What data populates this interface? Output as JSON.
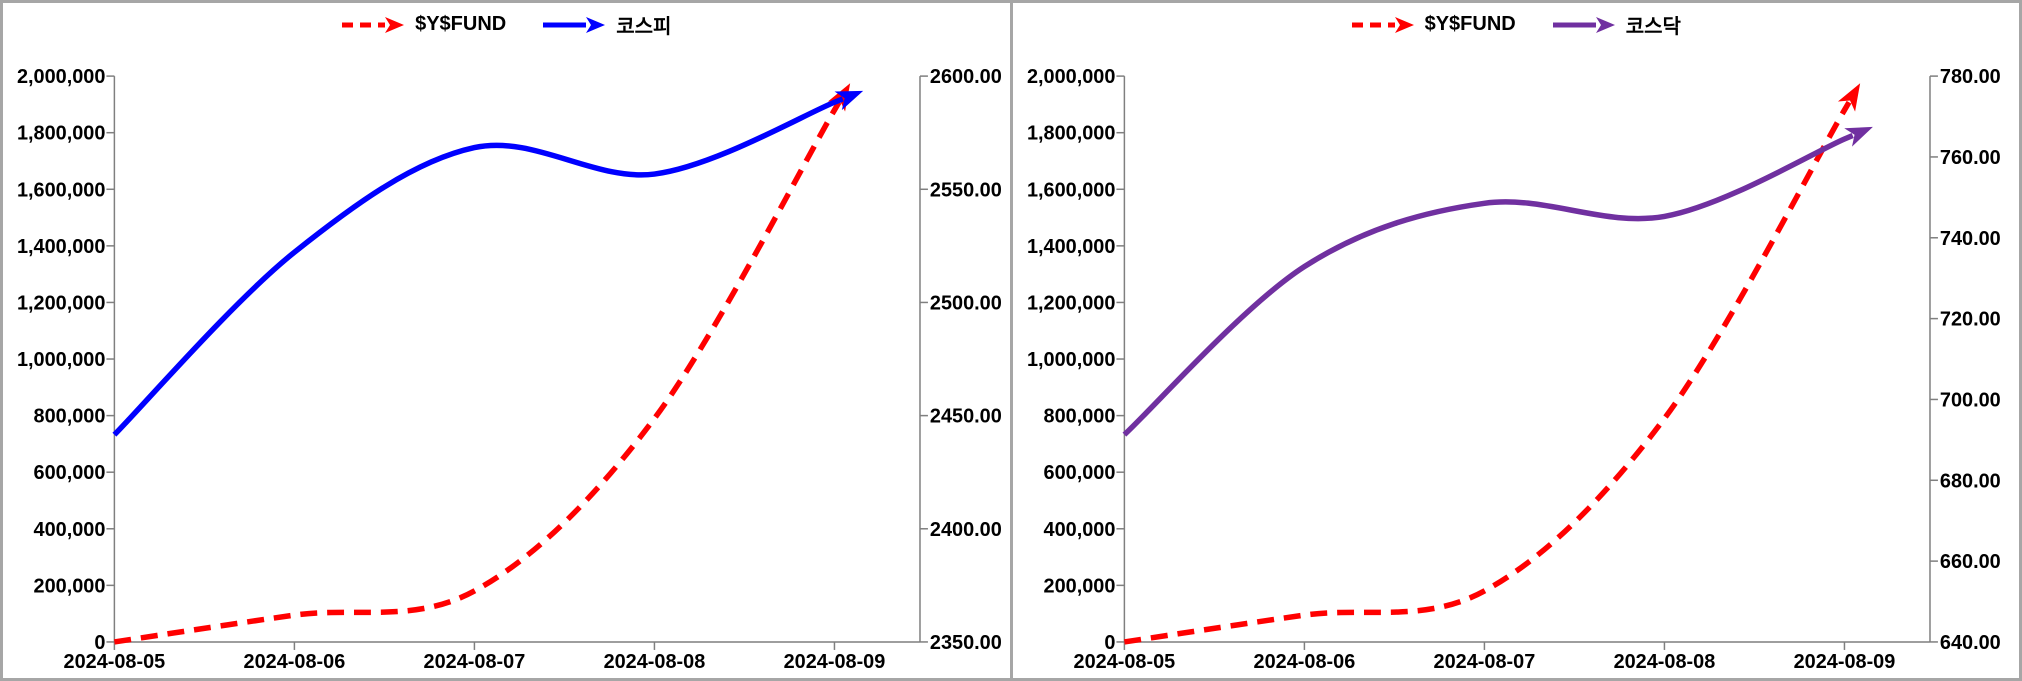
{
  "window": {
    "background": "#ffffff",
    "frame_color": "#a6a6a6",
    "axis_color": "#7f7f7f",
    "text_color": "#000000"
  },
  "chart_data": [
    {
      "type": "line",
      "panel": "kospi-panel",
      "smoothing": "spline",
      "grid": false,
      "end_arrows": true,
      "legend_position": "top-center",
      "x": [
        "2024-08-05",
        "2024-08-06",
        "2024-08-07",
        "2024-08-08",
        "2024-08-09"
      ],
      "left_axis": {
        "range": [
          0,
          2000000
        ],
        "step": 200000,
        "tick_labels": [
          "0",
          "200,000",
          "400,000",
          "600,000",
          "800,000",
          "1,000,000",
          "1,200,000",
          "1,400,000",
          "1,600,000",
          "1,800,000",
          "2,000,000"
        ]
      },
      "right_axis": {
        "range": [
          2350,
          2600
        ],
        "step": 50,
        "tick_labels": [
          "2350.00",
          "2400.00",
          "2450.00",
          "2500.00",
          "2550.00",
          "2600.00"
        ]
      },
      "series": [
        {
          "name": "$Y$FUND",
          "axis": "left",
          "color": "#ff0000",
          "style": "dashed",
          "values": [
            0,
            95000,
            180000,
            790000,
            1880000
          ]
        },
        {
          "name": "코스피",
          "axis": "right",
          "color": "#0000ff",
          "style": "solid",
          "values": [
            2441.55,
            2522.15,
            2568.41,
            2556.73,
            2588.43
          ]
        }
      ]
    },
    {
      "type": "line",
      "panel": "kosdaq-panel",
      "smoothing": "spline",
      "grid": false,
      "end_arrows": true,
      "legend_position": "top-center",
      "x": [
        "2024-08-05",
        "2024-08-06",
        "2024-08-07",
        "2024-08-08",
        "2024-08-09"
      ],
      "left_axis": {
        "range": [
          0,
          2000000
        ],
        "step": 200000,
        "tick_labels": [
          "0",
          "200,000",
          "400,000",
          "600,000",
          "800,000",
          "1,000,000",
          "1,200,000",
          "1,400,000",
          "1,600,000",
          "1,800,000",
          "2,000,000"
        ]
      },
      "right_axis": {
        "range": [
          640,
          780
        ],
        "step": 20,
        "tick_labels": [
          "640.00",
          "660.00",
          "680.00",
          "700.00",
          "720.00",
          "740.00",
          "760.00",
          "780.00"
        ]
      },
      "series": [
        {
          "name": "$Y$FUND",
          "axis": "left",
          "color": "#ff0000",
          "style": "dashed",
          "values": [
            0,
            95000,
            180000,
            790000,
            1880000
          ]
        },
        {
          "name": "코스닥",
          "axis": "right",
          "color": "#7030a0",
          "style": "solid",
          "values": [
            691.28,
            732.87,
            748.54,
            745.28,
            764.43
          ]
        }
      ]
    }
  ]
}
